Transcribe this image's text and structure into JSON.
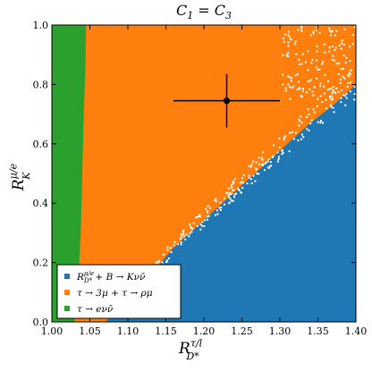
{
  "chart_data": {
    "type": "scatter",
    "title": "C₁ = C₃",
    "xlabel": "R_{D*}^{τ/l}",
    "ylabel": "R_K^{μ/e}",
    "xlim": [
      1.0,
      1.4
    ],
    "ylim": [
      0.0,
      1.0
    ],
    "x_ticks": [
      "1.00",
      "1.05",
      "1.10",
      "1.15",
      "1.20",
      "1.25",
      "1.30",
      "1.35",
      "1.40"
    ],
    "y_ticks": [
      "0.0",
      "0.2",
      "0.4",
      "0.6",
      "0.8",
      "1.0"
    ],
    "grid": false,
    "legend_position": "bottom-left",
    "series": [
      {
        "name": "R_{D*}^{μ/e} + B → Kνν̄",
        "color": "#1f77b4",
        "region": "lower-right",
        "boundary": {
          "x": [
            1.07,
            1.1,
            1.13,
            1.16,
            1.19,
            1.22,
            1.25,
            1.28,
            1.31,
            1.34,
            1.37,
            1.4
          ],
          "y": [
            0.0,
            0.07,
            0.16,
            0.25,
            0.32,
            0.39,
            0.46,
            0.53,
            0.6,
            0.67,
            0.73,
            0.8
          ]
        }
      },
      {
        "name": "τ → 3μ + τ → ρμ",
        "color": "#ff7f0e",
        "region": "middle"
      },
      {
        "name": "τ → eνν̄",
        "color": "#2ca02c",
        "region": "left-band",
        "boundary": {
          "x": [
            1.045,
            1.044,
            1.042,
            1.04,
            1.038,
            1.035,
            1.03
          ],
          "y": [
            1.0,
            0.85,
            0.7,
            0.5,
            0.3,
            0.15,
            0.0
          ]
        }
      }
    ],
    "data_point": {
      "x": 1.23,
      "y": 0.745,
      "x_err": 0.07,
      "y_err": 0.09,
      "color": "#000000"
    }
  }
}
